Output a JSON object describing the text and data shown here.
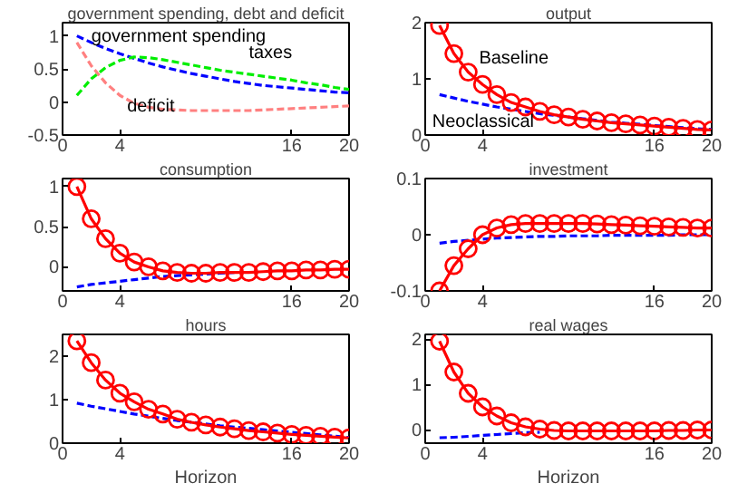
{
  "chart_data": [
    {
      "type": "line",
      "title": "government spending, debt and deficit",
      "x": [
        1,
        2,
        3,
        4,
        5,
        6,
        7,
        8,
        9,
        10,
        11,
        12,
        13,
        14,
        15,
        16,
        17,
        18,
        19,
        20
      ],
      "xlim": [
        0,
        20
      ],
      "xticks": [
        0,
        4,
        16,
        20
      ],
      "ylim": [
        -0.5,
        1.2
      ],
      "yticks": [
        -0.5,
        0,
        0.5,
        1
      ],
      "grid": false,
      "line_style": "dashed",
      "marker": "none",
      "series": [
        {
          "name": "government spending",
          "color": "#0000ff",
          "values": [
            1,
            0.9,
            0.81,
            0.73,
            0.66,
            0.59,
            0.53,
            0.48,
            0.43,
            0.39,
            0.35,
            0.31,
            0.28,
            0.25,
            0.23,
            0.21,
            0.19,
            0.17,
            0.15,
            0.14
          ]
        },
        {
          "name": "taxes",
          "color": "#00ee00",
          "values": [
            0.1,
            0.35,
            0.52,
            0.63,
            0.68,
            0.67,
            0.64,
            0.6,
            0.56,
            0.52,
            0.48,
            0.45,
            0.42,
            0.39,
            0.36,
            0.33,
            0.29,
            0.26,
            0.22,
            0.19
          ]
        },
        {
          "name": "deficit",
          "color": "#ff8080",
          "values": [
            0.9,
            0.55,
            0.29,
            0.1,
            -0.02,
            -0.08,
            -0.11,
            -0.12,
            -0.13,
            -0.13,
            -0.13,
            -0.13,
            -0.13,
            -0.12,
            -0.11,
            -0.1,
            -0.09,
            -0.08,
            -0.07,
            -0.06
          ]
        }
      ]
    },
    {
      "type": "line",
      "title": "output",
      "x": [
        1,
        2,
        3,
        4,
        5,
        6,
        7,
        8,
        9,
        10,
        11,
        12,
        13,
        14,
        15,
        16,
        17,
        18,
        19,
        20
      ],
      "xlim": [
        0,
        20
      ],
      "xticks": [
        0,
        4,
        16,
        20
      ],
      "ylim": [
        0,
        2
      ],
      "yticks": [
        0,
        1,
        2
      ],
      "grid": false,
      "series": [
        {
          "name": "Neoclassical",
          "color": "#0000ff",
          "line_style": "dashed",
          "marker": "none",
          "values": [
            0.72,
            0.66,
            0.6,
            0.55,
            0.5,
            0.46,
            0.42,
            0.38,
            0.35,
            0.32,
            0.29,
            0.26,
            0.23,
            0.21,
            0.19,
            0.17,
            0.15,
            0.13,
            0.11,
            0.1
          ]
        },
        {
          "name": "Baseline",
          "color": "#ff0000",
          "line_style": "solid",
          "marker": "circle",
          "values": [
            1.95,
            1.45,
            1.12,
            0.9,
            0.72,
            0.58,
            0.5,
            0.42,
            0.36,
            0.32,
            0.28,
            0.25,
            0.22,
            0.2,
            0.18,
            0.16,
            0.14,
            0.12,
            0.1,
            0.09
          ]
        }
      ]
    },
    {
      "type": "line",
      "title": "consumption",
      "x": [
        1,
        2,
        3,
        4,
        5,
        6,
        7,
        8,
        9,
        10,
        11,
        12,
        13,
        14,
        15,
        16,
        17,
        18,
        19,
        20
      ],
      "xlim": [
        0,
        20
      ],
      "xticks": [
        0,
        4,
        16,
        20
      ],
      "ylim": [
        -0.3,
        1.1
      ],
      "yticks": [
        0,
        0.5,
        1
      ],
      "grid": false,
      "series": [
        {
          "color": "#0000ff",
          "line_style": "dashed",
          "marker": "none",
          "values": [
            -0.25,
            -0.22,
            -0.2,
            -0.18,
            -0.16,
            -0.14,
            -0.12,
            -0.11,
            -0.1,
            -0.09,
            -0.08,
            -0.07,
            null,
            null,
            null,
            null,
            null,
            null,
            null,
            null
          ]
        },
        {
          "color": "#ff0000",
          "line_style": "solid",
          "marker": "circle",
          "values": [
            1.0,
            0.6,
            0.35,
            0.17,
            0.06,
            0,
            -0.05,
            -0.07,
            -0.08,
            -0.08,
            -0.07,
            -0.07,
            -0.07,
            -0.06,
            -0.05,
            -0.05,
            -0.04,
            -0.04,
            -0.03,
            -0.03
          ]
        }
      ]
    },
    {
      "type": "line",
      "title": "investment",
      "x": [
        1,
        2,
        3,
        4,
        5,
        6,
        7,
        8,
        9,
        10,
        11,
        12,
        13,
        14,
        15,
        16,
        17,
        18,
        19,
        20
      ],
      "xlim": [
        0,
        20
      ],
      "xticks": [
        0,
        4,
        16,
        20
      ],
      "ylim": [
        -0.1,
        0.1
      ],
      "yticks": [
        -0.1,
        0,
        0.1
      ],
      "grid": false,
      "series": [
        {
          "color": "#0000ff",
          "line_style": "dashed",
          "marker": "none",
          "values": [
            -0.015,
            -0.012,
            -0.01,
            -0.008,
            -0.006,
            -0.005,
            -0.004,
            -0.003,
            -0.003,
            -0.002,
            -0.002,
            -0.002,
            -0.001,
            -0.001,
            -0.001,
            -0.001,
            -0.001,
            0,
            0,
            0
          ]
        },
        {
          "color": "#ff0000",
          "line_style": "solid",
          "marker": "circle",
          "values": [
            -0.1,
            -0.055,
            -0.025,
            0,
            0.012,
            0.018,
            0.02,
            0.02,
            0.02,
            0.02,
            0.02,
            0.019,
            0.018,
            0.017,
            0.016,
            0.015,
            0.014,
            0.013,
            0.012,
            0.012
          ]
        }
      ]
    },
    {
      "type": "line",
      "title": "hours",
      "xlabel": "Horizon",
      "x": [
        1,
        2,
        3,
        4,
        5,
        6,
        7,
        8,
        9,
        10,
        11,
        12,
        13,
        14,
        15,
        16,
        17,
        18,
        19,
        20
      ],
      "xlim": [
        0,
        20
      ],
      "xticks": [
        0,
        4,
        16,
        20
      ],
      "ylim": [
        0,
        2.5
      ],
      "yticks": [
        0,
        1,
        2
      ],
      "grid": false,
      "series": [
        {
          "color": "#0000ff",
          "line_style": "dashed",
          "marker": "none",
          "values": [
            0.92,
            0.85,
            0.79,
            0.73,
            0.67,
            0.62,
            0.57,
            0.52,
            0.48,
            0.44,
            0.4,
            0.37,
            0.34,
            0.31,
            0.28,
            0.25,
            0.22,
            0.19,
            0.16,
            0.13
          ]
        },
        {
          "color": "#ff0000",
          "line_style": "solid",
          "marker": "circle",
          "values": [
            2.35,
            1.85,
            1.45,
            1.15,
            0.95,
            0.78,
            0.67,
            0.55,
            0.48,
            0.42,
            0.37,
            0.33,
            0.29,
            0.26,
            0.23,
            0.2,
            0.18,
            0.16,
            0.14,
            0.12
          ]
        }
      ]
    },
    {
      "type": "line",
      "title": "real wages",
      "xlabel": "Horizon",
      "x": [
        1,
        2,
        3,
        4,
        5,
        6,
        7,
        8,
        9,
        10,
        11,
        12,
        13,
        14,
        15,
        16,
        17,
        18,
        19,
        20
      ],
      "xlim": [
        0,
        20
      ],
      "xticks": [
        0,
        4,
        16,
        20
      ],
      "ylim": [
        -0.3,
        2.1
      ],
      "yticks": [
        0,
        1,
        2
      ],
      "grid": false,
      "series": [
        {
          "color": "#0000ff",
          "line_style": "dashed",
          "marker": "none",
          "values": [
            -0.18,
            -0.17,
            -0.15,
            -0.13,
            -0.11,
            -0.09,
            -0.07,
            -0.06,
            null,
            null,
            null,
            null,
            null,
            null,
            null,
            null,
            null,
            null,
            null,
            null
          ]
        },
        {
          "color": "#ff0000",
          "line_style": "solid",
          "marker": "circle",
          "values": [
            1.95,
            1.27,
            0.8,
            0.5,
            0.3,
            0.15,
            0.06,
            0.01,
            -0.02,
            -0.03,
            -0.03,
            -0.03,
            -0.03,
            -0.03,
            -0.03,
            -0.03,
            -0.02,
            -0.02,
            -0.01,
            -0.01
          ]
        }
      ]
    }
  ]
}
